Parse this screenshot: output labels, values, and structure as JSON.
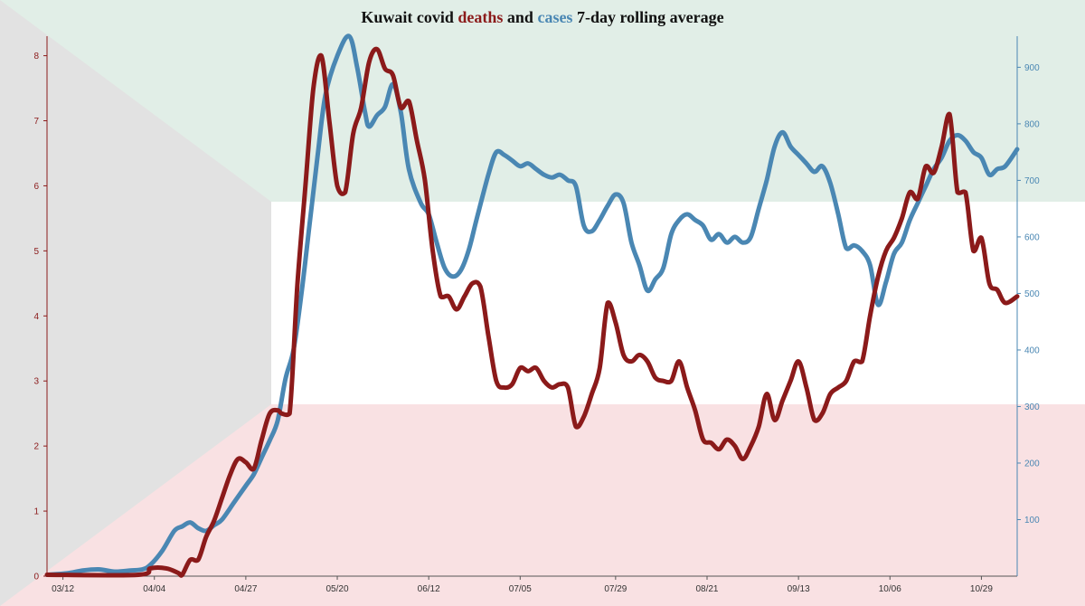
{
  "chart_data": {
    "type": "line",
    "title": {
      "prefix": "Kuwait covid ",
      "deaths_word": "deaths",
      "middle": " and ",
      "cases_word": "cases",
      "suffix": " 7-day rolling average"
    },
    "colors": {
      "deaths": "#8b1a1a",
      "cases": "#4a87b3",
      "bg_top": "#e1eee7",
      "bg_middle": "#ffffff",
      "bg_bottom": "#f9e1e3",
      "bg_wedge": "#e2e2e2"
    },
    "xlim": [
      "2020-03-08",
      "2020-11-07"
    ],
    "x_ticks": [
      {
        "date": "2020-03-12",
        "label": "03/12"
      },
      {
        "date": "2020-04-04",
        "label": "04/04"
      },
      {
        "date": "2020-04-27",
        "label": "04/27"
      },
      {
        "date": "2020-05-20",
        "label": "05/20"
      },
      {
        "date": "2020-06-12",
        "label": "06/12"
      },
      {
        "date": "2020-07-05",
        "label": "07/05"
      },
      {
        "date": "2020-07-29",
        "label": "07/29"
      },
      {
        "date": "2020-08-21",
        "label": "08/21"
      },
      {
        "date": "2020-09-13",
        "label": "09/13"
      },
      {
        "date": "2020-10-06",
        "label": "10/06"
      },
      {
        "date": "2020-10-29",
        "label": "10/29"
      }
    ],
    "y_left": {
      "lim": [
        0,
        8.3
      ],
      "ticks": [
        "0",
        "1",
        "2",
        "3",
        "4",
        "5",
        "6",
        "7",
        "8"
      ]
    },
    "y_right": {
      "lim": [
        0,
        955
      ],
      "ticks": [
        "100",
        "200",
        "300",
        "400",
        "500",
        "600",
        "700",
        "800",
        "900"
      ]
    },
    "series": [
      {
        "key": "cases",
        "axis": "right",
        "points": [
          [
            "2020-03-08",
            0
          ],
          [
            "2020-03-13",
            5
          ],
          [
            "2020-03-17",
            10
          ],
          [
            "2020-03-21",
            12
          ],
          [
            "2020-03-25",
            8
          ],
          [
            "2020-03-29",
            10
          ],
          [
            "2020-04-01",
            12
          ],
          [
            "2020-04-03",
            20
          ],
          [
            "2020-04-06",
            45
          ],
          [
            "2020-04-09",
            80
          ],
          [
            "2020-04-11",
            88
          ],
          [
            "2020-04-13",
            95
          ],
          [
            "2020-04-15",
            85
          ],
          [
            "2020-04-17",
            80
          ],
          [
            "2020-04-19",
            90
          ],
          [
            "2020-04-21",
            100
          ],
          [
            "2020-04-24",
            130
          ],
          [
            "2020-04-27",
            160
          ],
          [
            "2020-04-29",
            180
          ],
          [
            "2020-05-01",
            210
          ],
          [
            "2020-05-03",
            240
          ],
          [
            "2020-05-05",
            275
          ],
          [
            "2020-05-07",
            350
          ],
          [
            "2020-05-09",
            400
          ],
          [
            "2020-05-11",
            500
          ],
          [
            "2020-05-13",
            620
          ],
          [
            "2020-05-15",
            740
          ],
          [
            "2020-05-17",
            850
          ],
          [
            "2020-05-20",
            920
          ],
          [
            "2020-05-23",
            955
          ],
          [
            "2020-05-25",
            900
          ],
          [
            "2020-05-27",
            820
          ],
          [
            "2020-05-28",
            795
          ],
          [
            "2020-05-30",
            815
          ],
          [
            "2020-06-01",
            830
          ],
          [
            "2020-06-03",
            870
          ],
          [
            "2020-06-05",
            820
          ],
          [
            "2020-06-07",
            720
          ],
          [
            "2020-06-10",
            660
          ],
          [
            "2020-06-12",
            640
          ],
          [
            "2020-06-14",
            590
          ],
          [
            "2020-06-16",
            545
          ],
          [
            "2020-06-18",
            530
          ],
          [
            "2020-06-20",
            540
          ],
          [
            "2020-06-22",
            575
          ],
          [
            "2020-06-24",
            630
          ],
          [
            "2020-06-27",
            710
          ],
          [
            "2020-06-29",
            750
          ],
          [
            "2020-07-01",
            745
          ],
          [
            "2020-07-03",
            735
          ],
          [
            "2020-07-05",
            725
          ],
          [
            "2020-07-07",
            730
          ],
          [
            "2020-07-09",
            720
          ],
          [
            "2020-07-11",
            710
          ],
          [
            "2020-07-13",
            705
          ],
          [
            "2020-07-15",
            710
          ],
          [
            "2020-07-17",
            700
          ],
          [
            "2020-07-19",
            690
          ],
          [
            "2020-07-21",
            620
          ],
          [
            "2020-07-23",
            610
          ],
          [
            "2020-07-25",
            630
          ],
          [
            "2020-07-27",
            655
          ],
          [
            "2020-07-29",
            675
          ],
          [
            "2020-07-31",
            660
          ],
          [
            "2020-08-02",
            590
          ],
          [
            "2020-08-04",
            550
          ],
          [
            "2020-08-06",
            505
          ],
          [
            "2020-08-08",
            525
          ],
          [
            "2020-08-10",
            545
          ],
          [
            "2020-08-12",
            605
          ],
          [
            "2020-08-14",
            630
          ],
          [
            "2020-08-16",
            640
          ],
          [
            "2020-08-18",
            630
          ],
          [
            "2020-08-20",
            620
          ],
          [
            "2020-08-22",
            595
          ],
          [
            "2020-08-24",
            605
          ],
          [
            "2020-08-26",
            590
          ],
          [
            "2020-08-28",
            600
          ],
          [
            "2020-08-30",
            590
          ],
          [
            "2020-09-01",
            600
          ],
          [
            "2020-09-03",
            650
          ],
          [
            "2020-09-05",
            700
          ],
          [
            "2020-09-07",
            760
          ],
          [
            "2020-09-09",
            785
          ],
          [
            "2020-09-11",
            760
          ],
          [
            "2020-09-13",
            745
          ],
          [
            "2020-09-15",
            730
          ],
          [
            "2020-09-17",
            715
          ],
          [
            "2020-09-19",
            725
          ],
          [
            "2020-09-21",
            695
          ],
          [
            "2020-09-23",
            640
          ],
          [
            "2020-09-25",
            580
          ],
          [
            "2020-09-27",
            585
          ],
          [
            "2020-09-29",
            575
          ],
          [
            "2020-10-01",
            550
          ],
          [
            "2020-10-03",
            480
          ],
          [
            "2020-10-05",
            520
          ],
          [
            "2020-10-07",
            570
          ],
          [
            "2020-10-09",
            590
          ],
          [
            "2020-10-11",
            630
          ],
          [
            "2020-10-13",
            660
          ],
          [
            "2020-10-15",
            690
          ],
          [
            "2020-10-17",
            720
          ],
          [
            "2020-10-19",
            740
          ],
          [
            "2020-10-21",
            770
          ],
          [
            "2020-10-23",
            780
          ],
          [
            "2020-10-25",
            770
          ],
          [
            "2020-10-27",
            750
          ],
          [
            "2020-10-29",
            740
          ],
          [
            "2020-10-31",
            710
          ],
          [
            "2020-11-02",
            720
          ],
          [
            "2020-11-04",
            725
          ],
          [
            "2020-11-07",
            755
          ]
        ]
      },
      {
        "key": "deaths",
        "axis": "left",
        "points": [
          [
            "2020-03-08",
            0
          ],
          [
            "2020-03-31",
            0
          ],
          [
            "2020-04-03",
            0.12
          ],
          [
            "2020-04-07",
            0.12
          ],
          [
            "2020-04-10",
            0.05
          ],
          [
            "2020-04-11",
            0
          ],
          [
            "2020-04-13",
            0.25
          ],
          [
            "2020-04-15",
            0.25
          ],
          [
            "2020-04-17",
            0.6
          ],
          [
            "2020-04-19",
            0.85
          ],
          [
            "2020-04-21",
            1.2
          ],
          [
            "2020-04-23",
            1.55
          ],
          [
            "2020-04-25",
            1.8
          ],
          [
            "2020-04-27",
            1.75
          ],
          [
            "2020-04-29",
            1.65
          ],
          [
            "2020-05-01",
            2.1
          ],
          [
            "2020-05-03",
            2.5
          ],
          [
            "2020-05-05",
            2.55
          ],
          [
            "2020-05-06",
            2.5
          ],
          [
            "2020-05-08",
            2.5
          ],
          [
            "2020-05-10",
            4.5
          ],
          [
            "2020-05-12",
            6.0
          ],
          [
            "2020-05-14",
            7.5
          ],
          [
            "2020-05-16",
            8.0
          ],
          [
            "2020-05-18",
            7.0
          ],
          [
            "2020-05-20",
            6.0
          ],
          [
            "2020-05-22",
            5.9
          ],
          [
            "2020-05-24",
            6.8
          ],
          [
            "2020-05-26",
            7.2
          ],
          [
            "2020-05-28",
            7.9
          ],
          [
            "2020-05-30",
            8.1
          ],
          [
            "2020-06-01",
            7.8
          ],
          [
            "2020-06-03",
            7.7
          ],
          [
            "2020-06-05",
            7.2
          ],
          [
            "2020-06-07",
            7.3
          ],
          [
            "2020-06-09",
            6.7
          ],
          [
            "2020-06-11",
            6.1
          ],
          [
            "2020-06-13",
            5.0
          ],
          [
            "2020-06-15",
            4.3
          ],
          [
            "2020-06-17",
            4.3
          ],
          [
            "2020-06-19",
            4.1
          ],
          [
            "2020-06-21",
            4.3
          ],
          [
            "2020-06-23",
            4.5
          ],
          [
            "2020-06-25",
            4.45
          ],
          [
            "2020-06-27",
            3.7
          ],
          [
            "2020-06-29",
            3.0
          ],
          [
            "2020-07-01",
            2.9
          ],
          [
            "2020-07-03",
            2.95
          ],
          [
            "2020-07-05",
            3.2
          ],
          [
            "2020-07-07",
            3.15
          ],
          [
            "2020-07-09",
            3.2
          ],
          [
            "2020-07-11",
            3.0
          ],
          [
            "2020-07-13",
            2.9
          ],
          [
            "2020-07-15",
            2.95
          ],
          [
            "2020-07-17",
            2.9
          ],
          [
            "2020-07-19",
            2.3
          ],
          [
            "2020-07-21",
            2.45
          ],
          [
            "2020-07-23",
            2.8
          ],
          [
            "2020-07-25",
            3.2
          ],
          [
            "2020-07-27",
            4.2
          ],
          [
            "2020-07-29",
            3.9
          ],
          [
            "2020-07-31",
            3.4
          ],
          [
            "2020-08-02",
            3.3
          ],
          [
            "2020-08-04",
            3.4
          ],
          [
            "2020-08-06",
            3.3
          ],
          [
            "2020-08-08",
            3.05
          ],
          [
            "2020-08-10",
            3.0
          ],
          [
            "2020-08-12",
            3.0
          ],
          [
            "2020-08-14",
            3.3
          ],
          [
            "2020-08-16",
            2.9
          ],
          [
            "2020-08-18",
            2.55
          ],
          [
            "2020-08-20",
            2.1
          ],
          [
            "2020-08-22",
            2.05
          ],
          [
            "2020-08-24",
            1.95
          ],
          [
            "2020-08-26",
            2.1
          ],
          [
            "2020-08-28",
            2.0
          ],
          [
            "2020-08-30",
            1.8
          ],
          [
            "2020-09-01",
            2.0
          ],
          [
            "2020-09-03",
            2.3
          ],
          [
            "2020-09-05",
            2.8
          ],
          [
            "2020-09-07",
            2.4
          ],
          [
            "2020-09-09",
            2.7
          ],
          [
            "2020-09-11",
            3.0
          ],
          [
            "2020-09-13",
            3.3
          ],
          [
            "2020-09-15",
            2.9
          ],
          [
            "2020-09-17",
            2.4
          ],
          [
            "2020-09-19",
            2.5
          ],
          [
            "2020-09-21",
            2.8
          ],
          [
            "2020-09-23",
            2.9
          ],
          [
            "2020-09-25",
            3.0
          ],
          [
            "2020-09-27",
            3.3
          ],
          [
            "2020-09-29",
            3.3
          ],
          [
            "2020-10-01",
            4.0
          ],
          [
            "2020-10-03",
            4.6
          ],
          [
            "2020-10-05",
            5.0
          ],
          [
            "2020-10-07",
            5.2
          ],
          [
            "2020-10-09",
            5.5
          ],
          [
            "2020-10-11",
            5.9
          ],
          [
            "2020-10-13",
            5.8
          ],
          [
            "2020-10-15",
            6.3
          ],
          [
            "2020-10-17",
            6.2
          ],
          [
            "2020-10-19",
            6.6
          ],
          [
            "2020-10-21",
            7.1
          ],
          [
            "2020-10-23",
            5.9
          ],
          [
            "2020-10-25",
            5.9
          ],
          [
            "2020-10-27",
            5.0
          ],
          [
            "2020-10-29",
            5.2
          ],
          [
            "2020-10-31",
            4.5
          ],
          [
            "2020-11-02",
            4.4
          ],
          [
            "2020-11-04",
            4.2
          ],
          [
            "2020-11-07",
            4.3
          ]
        ]
      }
    ]
  }
}
